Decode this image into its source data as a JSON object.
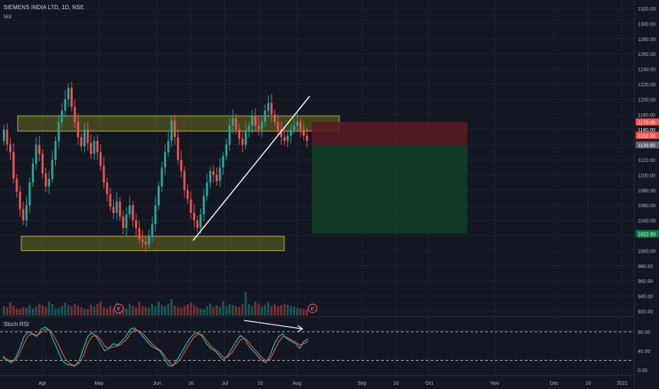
{
  "header": {
    "title": "SIEMENS INDIA LTD, 1D, NSE",
    "volume_label": "Vol"
  },
  "rsi_panel": {
    "title": "Stoch RSI",
    "levels": [
      80,
      40,
      0
    ],
    "level_labels": [
      "80.00",
      "40.00",
      "0.00"
    ],
    "overbought": 80,
    "oversold": 20
  },
  "colors": {
    "background": "#131722",
    "up": "#26a69a",
    "down": "#ef5350",
    "zone_fill": "#6b6b21",
    "zone_border": "#b8b84a",
    "stop_fill": "#5a1a22",
    "target_fill": "#123d26",
    "k_line": "#26c6b0",
    "d_line": "#ef5350",
    "trendline": "#ffffff"
  },
  "chart_data": {
    "type": "candlestick",
    "title": "SIEMENS INDIA LTD, 1D, NSE",
    "y_ticks": [
      920,
      940,
      960,
      980,
      1000,
      1020,
      1040,
      1060,
      1080,
      1100,
      1120,
      1140,
      1160,
      1180,
      1200,
      1220,
      1240,
      1260,
      1280,
      1300,
      1320
    ],
    "y_tick_labels": [
      "920.00",
      "940.00",
      "960.00",
      "980.00",
      "1000.00",
      "1020.00",
      "1040.00",
      "1060.00",
      "1080.00",
      "1100.00",
      "1120.00",
      "1140.00",
      "1160.00",
      "1180.00",
      "1200.00",
      "1220.00",
      "1240.00",
      "1260.00",
      "1280.00",
      "1300.00",
      "1320.00"
    ],
    "ylim": [
      912,
      1328
    ],
    "x_tick_labels": [
      "Apr",
      "May",
      "Jun",
      "16",
      "Jul",
      "16",
      "Aug",
      "Sep",
      "16",
      "Oct",
      "Nov",
      "Dec",
      "16",
      "2021"
    ],
    "price_labels": [
      {
        "text": "1170.05",
        "value": 1170.05,
        "color": "#ef5350"
      },
      {
        "text": "1160.00",
        "value": 1160.0,
        "color": "#ffffff"
      },
      {
        "text": "1152.35",
        "value": 1152.35,
        "color": "#ef5350"
      },
      {
        "text": "1139.85",
        "value": 1139.85,
        "color": "#5d606b"
      },
      {
        "text": "1022.50",
        "value": 1022.5,
        "color": "#0c7a43"
      }
    ],
    "zones": [
      {
        "name": "resistance",
        "y_low": 1158,
        "y_high": 1178
      },
      {
        "name": "support",
        "y_low": 1000,
        "y_high": 1019
      }
    ],
    "position": {
      "entry": 1139.85,
      "stop": 1170.05,
      "target": 1022.5
    },
    "earnings_markers": 2,
    "series": [
      {
        "name": "price",
        "o": [
          1145,
          1160,
          1140,
          1130,
          1095,
          1078,
          1055,
          1040,
          1060,
          1090,
          1115,
          1140,
          1128,
          1102,
          1085,
          1095,
          1120,
          1145,
          1170,
          1185,
          1200,
          1215,
          1190,
          1170,
          1150,
          1138,
          1160,
          1142,
          1128,
          1145,
          1130,
          1112,
          1090,
          1075,
          1058,
          1050,
          1065,
          1045,
          1030,
          1048,
          1060,
          1040,
          1030,
          1015,
          1012,
          1008,
          1020,
          1035,
          1060,
          1085,
          1110,
          1130,
          1145,
          1172,
          1150,
          1120,
          1105,
          1080,
          1068,
          1050,
          1040,
          1030,
          1048,
          1072,
          1090,
          1105,
          1100,
          1092,
          1110,
          1125,
          1140,
          1165,
          1175,
          1160,
          1148,
          1140,
          1158,
          1165,
          1178,
          1165,
          1160,
          1170,
          1185,
          1195,
          1180,
          1170,
          1160,
          1150,
          1145,
          1152,
          1160,
          1165,
          1170,
          1160,
          1152
        ],
        "c": [
          1160,
          1140,
          1130,
          1095,
          1078,
          1055,
          1040,
          1060,
          1090,
          1115,
          1140,
          1128,
          1102,
          1085,
          1095,
          1120,
          1145,
          1170,
          1185,
          1200,
          1215,
          1190,
          1170,
          1150,
          1138,
          1160,
          1142,
          1128,
          1145,
          1130,
          1112,
          1090,
          1075,
          1058,
          1050,
          1065,
          1045,
          1030,
          1048,
          1060,
          1040,
          1030,
          1015,
          1012,
          1008,
          1020,
          1035,
          1060,
          1085,
          1110,
          1130,
          1145,
          1172,
          1150,
          1120,
          1105,
          1080,
          1068,
          1050,
          1040,
          1030,
          1048,
          1072,
          1090,
          1105,
          1100,
          1092,
          1110,
          1125,
          1140,
          1165,
          1175,
          1160,
          1148,
          1140,
          1158,
          1165,
          1178,
          1165,
          1160,
          1170,
          1185,
          1195,
          1180,
          1170,
          1160,
          1150,
          1145,
          1152,
          1160,
          1165,
          1170,
          1160,
          1152,
          1145
        ]
      },
      {
        "name": "%K",
        "values": [
          30,
          20,
          15,
          25,
          45,
          70,
          80,
          75,
          70,
          85,
          90,
          82,
          60,
          40,
          20,
          12,
          10,
          8,
          20,
          45,
          70,
          78,
          70,
          55,
          40,
          45,
          55,
          52,
          60,
          70,
          85,
          88,
          80,
          70,
          60,
          50,
          45,
          40,
          25,
          10,
          8,
          20,
          35,
          50,
          65,
          75,
          78,
          70,
          55,
          45,
          40,
          30,
          20,
          30,
          45,
          60,
          72,
          65,
          50,
          40,
          30,
          20,
          15,
          30,
          55,
          70,
          75,
          65,
          60,
          55,
          45,
          60,
          65
        ]
      },
      {
        "name": "%D",
        "values": [
          25,
          22,
          18,
          20,
          35,
          55,
          72,
          76,
          72,
          78,
          85,
          84,
          72,
          55,
          35,
          20,
          12,
          9,
          14,
          30,
          55,
          70,
          72,
          64,
          50,
          45,
          48,
          50,
          55,
          62,
          75,
          84,
          82,
          76,
          66,
          56,
          48,
          42,
          32,
          18,
          10,
          14,
          25,
          40,
          55,
          68,
          75,
          74,
          62,
          50,
          43,
          36,
          26,
          27,
          36,
          50,
          63,
          66,
          58,
          46,
          36,
          26,
          19,
          22,
          40,
          58,
          70,
          68,
          63,
          58,
          52,
          55,
          60
        ]
      },
      {
        "name": "volume",
        "values": [
          40,
          35,
          55,
          42,
          30,
          28,
          35,
          33,
          45,
          30,
          38,
          50,
          42,
          36,
          60,
          48,
          30,
          32,
          40,
          55,
          45,
          38,
          50,
          42,
          35,
          30,
          28,
          45,
          38,
          50,
          60,
          36,
          30,
          40,
          32,
          55,
          44,
          38,
          30,
          50,
          42,
          35,
          58,
          40,
          36,
          32,
          48,
          40,
          60,
          45,
          38,
          50,
          70,
          42,
          36,
          32,
          40,
          48,
          55,
          44,
          36,
          30,
          28,
          40,
          52,
          36,
          44,
          38,
          62,
          40,
          48,
          45,
          40,
          36,
          50,
          100,
          48,
          40,
          60,
          50,
          38,
          45,
          56,
          40,
          48,
          40,
          44,
          50,
          46,
          40,
          38,
          32,
          30,
          28,
          26
        ]
      }
    ]
  }
}
